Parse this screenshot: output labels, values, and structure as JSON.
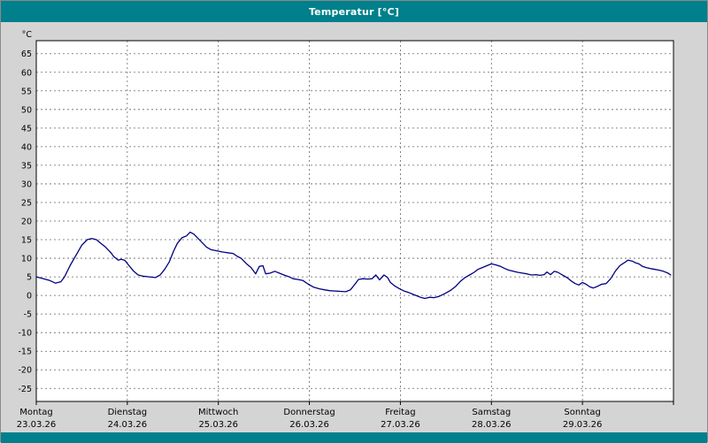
{
  "window": {
    "title": "Temperatur [°C]"
  },
  "colors": {
    "titlebar": "#00808c",
    "background": "#d4d4d4",
    "plot_background": "#ffffff",
    "plot_border": "#000000",
    "grid": "#666666",
    "line": "#000080",
    "tick_text": "#000000"
  },
  "chart_data": {
    "type": "line",
    "title": "Temperatur [°C]",
    "y_unit_label": "°C",
    "ylim": [
      -28.5,
      68.5
    ],
    "y_ticks": [
      65,
      60,
      55,
      50,
      45,
      40,
      35,
      30,
      25,
      20,
      15,
      10,
      5,
      0,
      -5,
      -10,
      -15,
      -20,
      -25
    ],
    "xlim_days": [
      0,
      7
    ],
    "x_ticks": [
      {
        "day": 0,
        "weekday": "Montag",
        "date": "23.03.26"
      },
      {
        "day": 1,
        "weekday": "Dienstag",
        "date": "24.03.26"
      },
      {
        "day": 2,
        "weekday": "Mittwoch",
        "date": "25.03.26"
      },
      {
        "day": 3,
        "weekday": "Donnerstag",
        "date": "26.03.26"
      },
      {
        "day": 4,
        "weekday": "Freitag",
        "date": "27.03.26"
      },
      {
        "day": 5,
        "weekday": "Samstag",
        "date": "28.03.26"
      },
      {
        "day": 6,
        "weekday": "Sonntag",
        "date": "29.03.26"
      }
    ],
    "grid": {
      "horizontal_dashed": true,
      "vertical_dashed": true
    },
    "legend": "none",
    "series": [
      {
        "name": "Temperatur",
        "color": "#000080",
        "points": [
          [
            0.0,
            5
          ],
          [
            0.08,
            4.5
          ],
          [
            0.15,
            4
          ],
          [
            0.21,
            3.3
          ],
          [
            0.27,
            3.7
          ],
          [
            0.31,
            5
          ],
          [
            0.37,
            8
          ],
          [
            0.44,
            11
          ],
          [
            0.5,
            13.5
          ],
          [
            0.56,
            15
          ],
          [
            0.61,
            15.3
          ],
          [
            0.66,
            15
          ],
          [
            0.71,
            14
          ],
          [
            0.76,
            13
          ],
          [
            0.82,
            11.5
          ],
          [
            0.85,
            10.5
          ],
          [
            0.9,
            9.5
          ],
          [
            0.93,
            9.7
          ],
          [
            0.97,
            9.5
          ],
          [
            1.02,
            8
          ],
          [
            1.07,
            6.5
          ],
          [
            1.12,
            5.5
          ],
          [
            1.17,
            5.2
          ],
          [
            1.24,
            5
          ],
          [
            1.31,
            4.8
          ],
          [
            1.36,
            5.5
          ],
          [
            1.41,
            7
          ],
          [
            1.46,
            9
          ],
          [
            1.51,
            12
          ],
          [
            1.55,
            14
          ],
          [
            1.6,
            15.5
          ],
          [
            1.65,
            16
          ],
          [
            1.69,
            17
          ],
          [
            1.73,
            16.5
          ],
          [
            1.77,
            15.5
          ],
          [
            1.83,
            14
          ],
          [
            1.87,
            13
          ],
          [
            1.92,
            12.3
          ],
          [
            1.98,
            12
          ],
          [
            2.04,
            11.7
          ],
          [
            2.1,
            11.5
          ],
          [
            2.16,
            11.3
          ],
          [
            2.21,
            10.5
          ],
          [
            2.25,
            10
          ],
          [
            2.31,
            8.5
          ],
          [
            2.36,
            7.5
          ],
          [
            2.41,
            5.8
          ],
          [
            2.45,
            7.8
          ],
          [
            2.49,
            8
          ],
          [
            2.52,
            5.8
          ],
          [
            2.57,
            6
          ],
          [
            2.62,
            6.5
          ],
          [
            2.67,
            6
          ],
          [
            2.72,
            5.5
          ],
          [
            2.78,
            5
          ],
          [
            2.82,
            4.5
          ],
          [
            2.87,
            4.3
          ],
          [
            2.93,
            4
          ],
          [
            2.99,
            3
          ],
          [
            3.05,
            2.2
          ],
          [
            3.11,
            1.8
          ],
          [
            3.17,
            1.5
          ],
          [
            3.22,
            1.3
          ],
          [
            3.28,
            1.2
          ],
          [
            3.34,
            1.1
          ],
          [
            3.4,
            1
          ],
          [
            3.45,
            1.5
          ],
          [
            3.5,
            3
          ],
          [
            3.54,
            4.3
          ],
          [
            3.59,
            4.5
          ],
          [
            3.64,
            4.4
          ],
          [
            3.69,
            4.5
          ],
          [
            3.73,
            5.5
          ],
          [
            3.77,
            4.2
          ],
          [
            3.82,
            5.5
          ],
          [
            3.86,
            4.8
          ],
          [
            3.89,
            3.5
          ],
          [
            3.94,
            2.5
          ],
          [
            3.99,
            1.8
          ],
          [
            4.04,
            1.2
          ],
          [
            4.09,
            0.8
          ],
          [
            4.14,
            0.3
          ],
          [
            4.17,
            0
          ],
          [
            4.22,
            -0.5
          ],
          [
            4.27,
            -0.8
          ],
          [
            4.32,
            -0.5
          ],
          [
            4.37,
            -0.6
          ],
          [
            4.42,
            -0.3
          ],
          [
            4.47,
            0.3
          ],
          [
            4.51,
            0.8
          ],
          [
            4.56,
            1.5
          ],
          [
            4.61,
            2.5
          ],
          [
            4.66,
            3.8
          ],
          [
            4.71,
            4.8
          ],
          [
            4.76,
            5.5
          ],
          [
            4.81,
            6.2
          ],
          [
            4.85,
            7
          ],
          [
            4.9,
            7.5
          ],
          [
            4.95,
            8
          ],
          [
            5.0,
            8.5
          ],
          [
            5.05,
            8.2
          ],
          [
            5.1,
            7.8
          ],
          [
            5.15,
            7.2
          ],
          [
            5.19,
            6.8
          ],
          [
            5.24,
            6.5
          ],
          [
            5.29,
            6.2
          ],
          [
            5.34,
            6
          ],
          [
            5.39,
            5.8
          ],
          [
            5.44,
            5.5
          ],
          [
            5.49,
            5.6
          ],
          [
            5.53,
            5.4
          ],
          [
            5.58,
            5.6
          ],
          [
            5.61,
            6.3
          ],
          [
            5.65,
            5.6
          ],
          [
            5.69,
            6.5
          ],
          [
            5.73,
            6.2
          ],
          [
            5.78,
            5.5
          ],
          [
            5.83,
            4.8
          ],
          [
            5.87,
            4
          ],
          [
            5.92,
            3.2
          ],
          [
            5.96,
            2.8
          ],
          [
            6.0,
            3.5
          ],
          [
            6.04,
            3
          ],
          [
            6.08,
            2.3
          ],
          [
            6.12,
            2
          ],
          [
            6.17,
            2.5
          ],
          [
            6.21,
            3
          ],
          [
            6.26,
            3.2
          ],
          [
            6.31,
            4.5
          ],
          [
            6.36,
            6.5
          ],
          [
            6.41,
            8
          ],
          [
            6.46,
            8.8
          ],
          [
            6.5,
            9.5
          ],
          [
            6.55,
            9.2
          ],
          [
            6.58,
            8.8
          ],
          [
            6.62,
            8.5
          ],
          [
            6.66,
            7.8
          ],
          [
            6.7,
            7.5
          ],
          [
            6.75,
            7.2
          ],
          [
            6.8,
            7
          ],
          [
            6.84,
            6.8
          ],
          [
            6.89,
            6.5
          ],
          [
            6.94,
            6
          ],
          [
            6.97,
            5.5
          ]
        ]
      }
    ]
  }
}
